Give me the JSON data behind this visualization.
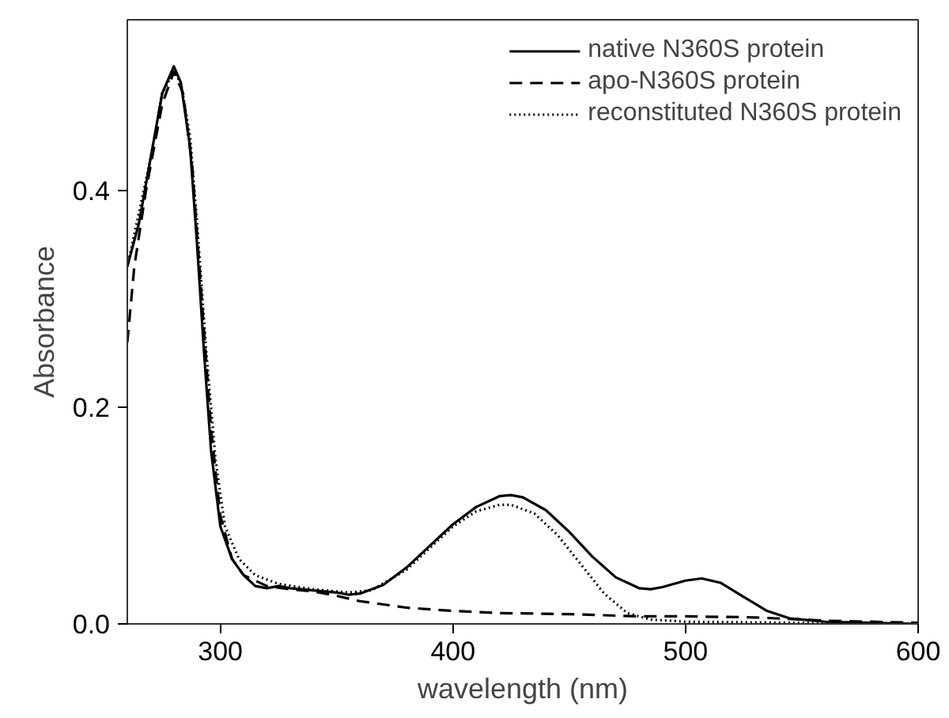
{
  "chart_data": {
    "type": "line",
    "xlabel": "wavelength (nm)",
    "ylabel": "Absorbance",
    "xlim": [
      260,
      600
    ],
    "ylim": [
      0,
      0.558
    ],
    "xticks": [
      300,
      400,
      500,
      600
    ],
    "yticks": [
      {
        "value": 0,
        "label": "0.0"
      },
      0.2,
      0.4
    ],
    "grid": false,
    "legend": "top right",
    "marker": "none",
    "series": [
      {
        "name": "native N360S protein",
        "color": "#000000",
        "line_style": "solid",
        "x": [
          260,
          265,
          270,
          275,
          280,
          283,
          287,
          290,
          293,
          296,
          300,
          305,
          310,
          315,
          320,
          325,
          330,
          340,
          350,
          355,
          360,
          370,
          380,
          390,
          400,
          410,
          420,
          425,
          430,
          440,
          450,
          460,
          470,
          480,
          485,
          490,
          500,
          507,
          515,
          525,
          535,
          545,
          560,
          580,
          600
        ],
        "values": [
          0.33,
          0.37,
          0.43,
          0.49,
          0.515,
          0.5,
          0.44,
          0.35,
          0.25,
          0.16,
          0.09,
          0.06,
          0.045,
          0.035,
          0.033,
          0.035,
          0.033,
          0.031,
          0.029,
          0.027,
          0.028,
          0.036,
          0.052,
          0.072,
          0.092,
          0.108,
          0.118,
          0.119,
          0.117,
          0.105,
          0.085,
          0.062,
          0.043,
          0.033,
          0.032,
          0.034,
          0.04,
          0.042,
          0.038,
          0.025,
          0.012,
          0.005,
          0.002,
          0.001,
          0.0
        ]
      },
      {
        "name": "apo-N360S protein",
        "color": "#000000",
        "line_style": "dashed",
        "x": [
          260,
          263,
          268,
          275,
          280,
          284,
          288,
          292,
          296,
          300,
          305,
          310,
          320,
          330,
          340,
          350,
          360,
          380,
          400,
          420,
          450,
          480,
          500,
          530,
          560,
          600
        ],
        "values": [
          0.26,
          0.33,
          0.4,
          0.48,
          0.51,
          0.49,
          0.42,
          0.3,
          0.18,
          0.1,
          0.06,
          0.045,
          0.035,
          0.032,
          0.03,
          0.026,
          0.021,
          0.015,
          0.012,
          0.01,
          0.009,
          0.007,
          0.007,
          0.006,
          0.003,
          0.001
        ]
      },
      {
        "name": "reconstituted N360S protein",
        "color": "#000000",
        "line_style": "dotted",
        "x": [
          260,
          270,
          275,
          280,
          283,
          287,
          290,
          294,
          298,
          302,
          308,
          315,
          325,
          340,
          355,
          365,
          380,
          400,
          410,
          420,
          425,
          435,
          445,
          455,
          465,
          475,
          485,
          500,
          550,
          600
        ],
        "values": [
          0.33,
          0.43,
          0.49,
          0.51,
          0.5,
          0.45,
          0.37,
          0.25,
          0.15,
          0.09,
          0.06,
          0.045,
          0.037,
          0.032,
          0.029,
          0.031,
          0.05,
          0.09,
          0.104,
          0.11,
          0.11,
          0.102,
          0.082,
          0.055,
          0.028,
          0.01,
          0.004,
          0.002,
          0.001,
          0.0
        ]
      }
    ]
  }
}
